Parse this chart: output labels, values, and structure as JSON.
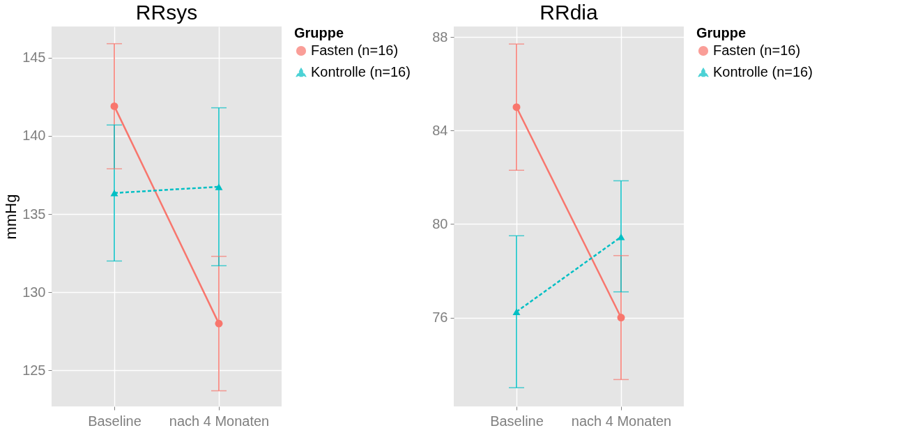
{
  "chart_data": [
    {
      "type": "line",
      "title": "RRsys",
      "ylabel": "mmHg",
      "legend_title": "Gruppe",
      "categories": [
        "Baseline",
        "nach 4 Monaten"
      ],
      "ylim": [
        122.7,
        147
      ],
      "yticks": [
        125,
        130,
        135,
        140,
        145
      ],
      "grid": true,
      "legend": "right",
      "series": [
        {
          "name": "Fasten (n=16)",
          "color": "#f8766d",
          "marker": "circle",
          "line_style": "solid",
          "values": [
            141.9,
            128.0
          ],
          "errors": [
            [
              137.9,
              145.9
            ],
            [
              123.7,
              132.3
            ]
          ]
        },
        {
          "name": "Kontrolle (n=16)",
          "color": "#00bfc4",
          "marker": "triangle",
          "line_style": "dashed",
          "values": [
            136.35,
            136.75
          ],
          "errors": [
            [
              132.0,
              140.7
            ],
            [
              131.7,
              141.8
            ]
          ]
        }
      ]
    },
    {
      "type": "line",
      "title": "RRdia",
      "legend_title": "Gruppe",
      "categories": [
        "Baseline",
        "nach 4 Monaten"
      ],
      "ylim": [
        72.2,
        88.45
      ],
      "yticks": [
        76,
        80,
        84,
        88
      ],
      "grid": true,
      "legend": "right",
      "series": [
        {
          "name": "Fasten (n=16)",
          "color": "#f8766d",
          "marker": "circle",
          "line_style": "solid",
          "values": [
            85.0,
            76.0
          ],
          "errors": [
            [
              82.3,
              87.7
            ],
            [
              73.35,
              78.65
            ]
          ]
        },
        {
          "name": "Kontrolle (n=16)",
          "color": "#00bfc4",
          "marker": "triangle",
          "line_style": "dashed",
          "values": [
            76.25,
            79.45
          ],
          "errors": [
            [
              73.0,
              79.5
            ],
            [
              77.1,
              81.85
            ]
          ]
        }
      ]
    }
  ]
}
